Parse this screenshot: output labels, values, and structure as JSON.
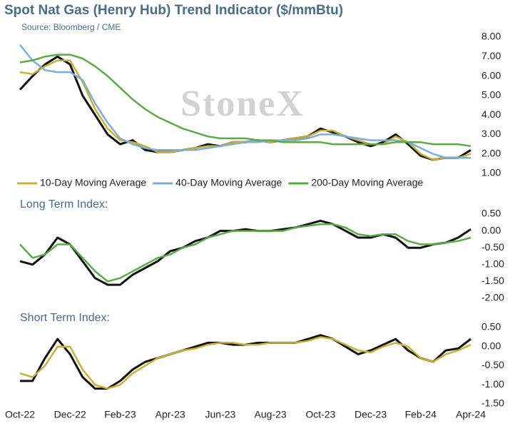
{
  "chart_data": [
    {
      "type": "line",
      "title": "Spot Nat Gas (Henry Hub) Trend Indicator ($/mmBtu)",
      "subtitle": "Source: Bloomberg / CME",
      "watermark": "StoneX",
      "ylim": [
        1,
        8
      ],
      "yticks": [
        {
          "value": 8,
          "label": "8.00"
        },
        {
          "value": 7,
          "label": "7.00"
        },
        {
          "value": 6,
          "label": "6.00"
        },
        {
          "value": 5,
          "label": "5.00"
        },
        {
          "value": 4,
          "label": "4.00"
        },
        {
          "value": 3,
          "label": "3.00"
        },
        {
          "value": 2,
          "label": "2.00"
        },
        {
          "value": 1,
          "label": "1.00"
        }
      ],
      "legend": "bottom",
      "series": [
        {
          "color": "#111111",
          "values": [
            5.3,
            6.0,
            6.6,
            7.0,
            6.6,
            5.0,
            4.0,
            3.0,
            2.5,
            2.7,
            2.2,
            2.1,
            2.1,
            2.2,
            2.3,
            2.5,
            2.4,
            2.6,
            2.6,
            2.7,
            2.6,
            2.7,
            2.8,
            2.9,
            3.3,
            3.1,
            2.9,
            2.6,
            2.4,
            2.6,
            3.0,
            2.5,
            1.9,
            1.7,
            1.8,
            1.8,
            2.2
          ]
        },
        {
          "name": "10-Day Moving Average",
          "color": "#c9b037",
          "values": [
            6.2,
            6.1,
            6.5,
            6.8,
            6.8,
            5.7,
            4.3,
            3.3,
            2.7,
            2.6,
            2.4,
            2.1,
            2.1,
            2.2,
            2.3,
            2.4,
            2.4,
            2.6,
            2.6,
            2.7,
            2.6,
            2.7,
            2.8,
            2.9,
            3.2,
            3.2,
            2.9,
            2.7,
            2.5,
            2.5,
            2.9,
            2.6,
            2.0,
            1.7,
            1.8,
            1.8,
            2.0
          ]
        },
        {
          "name": "40-Day Moving Average",
          "color": "#7eaed6",
          "values": [
            7.6,
            6.8,
            6.3,
            6.2,
            6.2,
            5.8,
            4.6,
            3.6,
            2.8,
            2.5,
            2.3,
            2.2,
            2.2,
            2.2,
            2.2,
            2.3,
            2.4,
            2.5,
            2.6,
            2.6,
            2.7,
            2.7,
            2.7,
            2.8,
            3.0,
            3.0,
            2.9,
            2.8,
            2.7,
            2.7,
            2.7,
            2.6,
            2.3,
            2.0,
            1.8,
            1.8,
            1.8
          ]
        },
        {
          "name": "200-Day Moving Average",
          "color": "#5aab46",
          "values": [
            6.7,
            6.8,
            7.0,
            7.1,
            7.1,
            6.9,
            6.5,
            6.0,
            5.4,
            4.8,
            4.3,
            3.9,
            3.6,
            3.3,
            3.1,
            2.9,
            2.8,
            2.8,
            2.8,
            2.7,
            2.7,
            2.6,
            2.6,
            2.6,
            2.6,
            2.5,
            2.5,
            2.5,
            2.5,
            2.5,
            2.6,
            2.6,
            2.6,
            2.5,
            2.5,
            2.5,
            2.4
          ]
        }
      ]
    },
    {
      "type": "line",
      "title": "Long Term Index:",
      "ylim": [
        -2,
        0.5
      ],
      "yticks": [
        {
          "value": 0.5,
          "label": "0.50"
        },
        {
          "value": 0,
          "label": "0.00"
        },
        {
          "value": -0.5,
          "label": "-0.50"
        },
        {
          "value": -1,
          "label": "-1.00"
        },
        {
          "value": -1.5,
          "label": "-1.50"
        },
        {
          "value": -2,
          "label": "-2.00"
        }
      ],
      "series": [
        {
          "color": "#111111",
          "values": [
            -0.9,
            -1.0,
            -0.7,
            -0.2,
            -0.4,
            -0.9,
            -1.4,
            -1.6,
            -1.6,
            -1.3,
            -1.1,
            -0.9,
            -0.6,
            -0.5,
            -0.3,
            -0.2,
            0.0,
            0.0,
            0.05,
            0.0,
            0.0,
            0.05,
            0.1,
            0.2,
            0.3,
            0.2,
            0.0,
            -0.2,
            -0.2,
            -0.1,
            -0.2,
            -0.5,
            -0.5,
            -0.4,
            -0.35,
            -0.2,
            0.05
          ]
        },
        {
          "color": "#5aab46",
          "values": [
            -0.4,
            -0.8,
            -0.7,
            -0.4,
            -0.4,
            -0.8,
            -1.2,
            -1.5,
            -1.4,
            -1.2,
            -1.0,
            -0.8,
            -0.7,
            -0.5,
            -0.4,
            -0.2,
            -0.1,
            0.0,
            0.0,
            0.0,
            0.0,
            0.0,
            0.1,
            0.15,
            0.2,
            0.2,
            0.1,
            -0.1,
            -0.15,
            -0.1,
            -0.1,
            -0.3,
            -0.4,
            -0.4,
            -0.35,
            -0.3,
            -0.2
          ]
        }
      ]
    },
    {
      "type": "line",
      "title": "Short Term Index:",
      "ylim": [
        -1.5,
        0.5
      ],
      "yticks": [
        {
          "value": 0.5,
          "label": "0.50"
        },
        {
          "value": 0,
          "label": "0.00"
        },
        {
          "value": -0.5,
          "label": "-0.50"
        },
        {
          "value": -1,
          "label": "-1.00"
        },
        {
          "value": -1.5,
          "label": "-1.50"
        }
      ],
      "categories": [
        "Oct-22",
        null,
        null,
        null,
        "Dec-22",
        null,
        null,
        null,
        "Feb-23",
        null,
        null,
        null,
        "Apr-23",
        null,
        null,
        null,
        "Jun-23",
        null,
        null,
        null,
        "Aug-23",
        null,
        null,
        null,
        "Oct-23",
        null,
        null,
        null,
        "Dec-23",
        null,
        null,
        null,
        "Feb-24",
        null,
        null,
        null,
        "Apr-24"
      ],
      "series": [
        {
          "color": "#111111",
          "values": [
            -0.9,
            -0.9,
            -0.3,
            0.2,
            -0.2,
            -0.8,
            -1.1,
            -1.1,
            -0.9,
            -0.6,
            -0.4,
            -0.3,
            -0.2,
            -0.1,
            0.0,
            0.1,
            0.1,
            0.05,
            0.05,
            0.1,
            0.1,
            0.1,
            0.1,
            0.2,
            0.3,
            0.2,
            0.0,
            -0.2,
            -0.1,
            0.05,
            0.2,
            -0.1,
            -0.3,
            -0.4,
            -0.1,
            -0.05,
            0.2
          ]
        },
        {
          "color": "#c9b037",
          "values": [
            -0.7,
            -0.8,
            -0.5,
            0.0,
            0.0,
            -0.6,
            -1.0,
            -1.1,
            -1.0,
            -0.7,
            -0.5,
            -0.3,
            -0.2,
            -0.1,
            -0.05,
            0.05,
            0.1,
            0.1,
            0.05,
            0.05,
            0.1,
            0.1,
            0.1,
            0.15,
            0.25,
            0.2,
            0.05,
            -0.1,
            -0.15,
            0.0,
            0.1,
            0.0,
            -0.3,
            -0.4,
            -0.2,
            -0.1,
            0.05
          ]
        }
      ]
    }
  ]
}
